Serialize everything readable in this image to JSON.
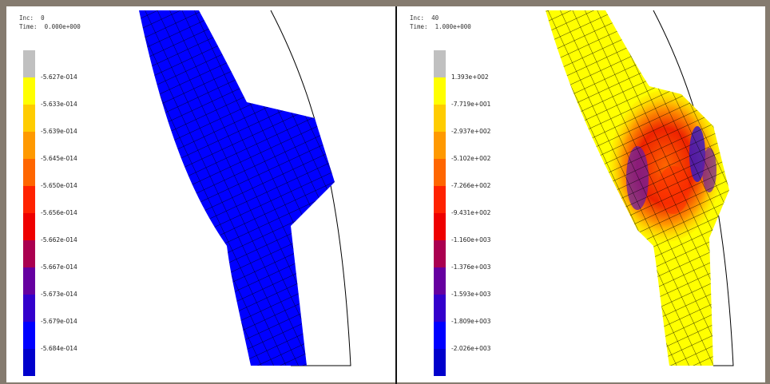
{
  "panels": [
    {
      "id": "left",
      "inc_label": "Inc:  0",
      "time_label": "Time:  0.000e+000",
      "legend_colors": [
        "#c0c0c0",
        "#ffff00",
        "#ffcc00",
        "#ff9900",
        "#ff6600",
        "#ff2200",
        "#ee0000",
        "#aa0050",
        "#6600a0",
        "#3300cc",
        "#0000ff",
        "#0000cc",
        "#666666"
      ],
      "legend_ticks": [
        "-5.627e-014",
        "-5.633e-014",
        "-5.639e-014",
        "-5.645e-014",
        "-5.650e-014",
        "-5.656e-014",
        "-5.662e-014",
        "-5.667e-014",
        "-5.673e-014",
        "-5.679e-014",
        "-5.684e-014"
      ],
      "mesh_fill": "#0000ff"
    },
    {
      "id": "right",
      "inc_label": "Inc:  40",
      "time_label": "Time:  1.000e+000",
      "legend_colors": [
        "#c0c0c0",
        "#ffff00",
        "#ffcc00",
        "#ff9900",
        "#ff6600",
        "#ff2200",
        "#ee0000",
        "#aa0050",
        "#6600a0",
        "#3300cc",
        "#0000ff",
        "#0000cc",
        "#666666"
      ],
      "legend_ticks": [
        "1.393e+002",
        "-7.719e+001",
        "-2.937e+002",
        "-5.102e+002",
        "-7.266e+002",
        "-9.431e+002",
        "-1.160e+003",
        "-1.376e+003",
        "-1.593e+003",
        "-1.809e+003",
        "-2.026e+003"
      ],
      "mesh_fill": "#ffff00"
    }
  ]
}
